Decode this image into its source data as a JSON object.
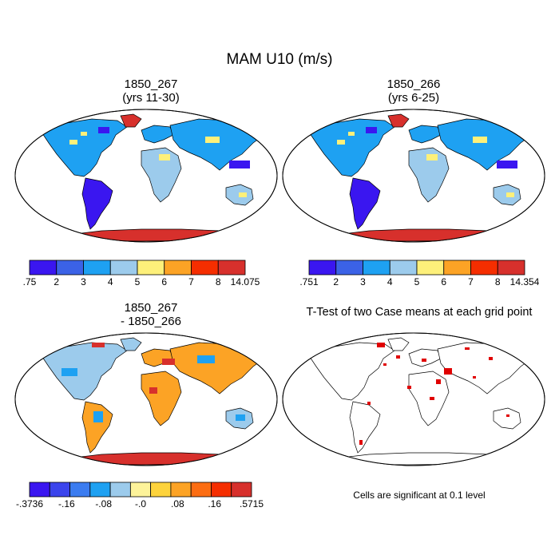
{
  "figure": {
    "title": "MAM U10 (m/s)",
    "panels": [
      {
        "title_line1": "1850_267",
        "title_line2": "(yrs 11-30)"
      },
      {
        "title_line1": "1850_266",
        "title_line2": "(yrs 6-25)"
      },
      {
        "title_line1": "1850_267",
        "title_line2": "- 1850_266"
      },
      {
        "title_line1": "T-Test of two Case means at each grid point",
        "note": "Cells are significant at 0.1 level"
      }
    ]
  },
  "colorbars": [
    {
      "colors": [
        "#3a16f0",
        "#3b62e6",
        "#1ea1f2",
        "#9ccbec",
        "#fdf07a",
        "#fca325",
        "#f52e00",
        "#d7302c"
      ],
      "labels": [
        ".75",
        "2",
        "3",
        "4",
        "5",
        "6",
        "7",
        "8",
        "14.075"
      ]
    },
    {
      "colors": [
        "#3a16f0",
        "#3b62e6",
        "#1ea1f2",
        "#9ccbec",
        "#fdf07a",
        "#fca325",
        "#f52e00",
        "#d7302c"
      ],
      "labels": [
        ".751",
        "2",
        "3",
        "4",
        "5",
        "6",
        "7",
        "8",
        "14.354"
      ]
    },
    {
      "colors": [
        "#3a16f0",
        "#3b44ec",
        "#3b7cf0",
        "#1ea1f2",
        "#9ccbec",
        "#fdf39a",
        "#fdd33c",
        "#fca325",
        "#fc6d12",
        "#f52e00",
        "#d7302c"
      ],
      "labels": [
        "-.3736",
        "-.16",
        "-.08",
        "-.0",
        ".08",
        ".16",
        ".5715"
      ]
    }
  ],
  "map_colors": {
    "ocean": "#ffffff",
    "coast": "#000000",
    "low": "#3a16f0",
    "mid_low": "#1ea1f2",
    "mid": "#9ccbec",
    "high": "#fdf07a",
    "very_high": "#d7302c",
    "diff_pos": "#fca325",
    "diff_neg": "#9ccbec",
    "significant": "#e00000"
  }
}
